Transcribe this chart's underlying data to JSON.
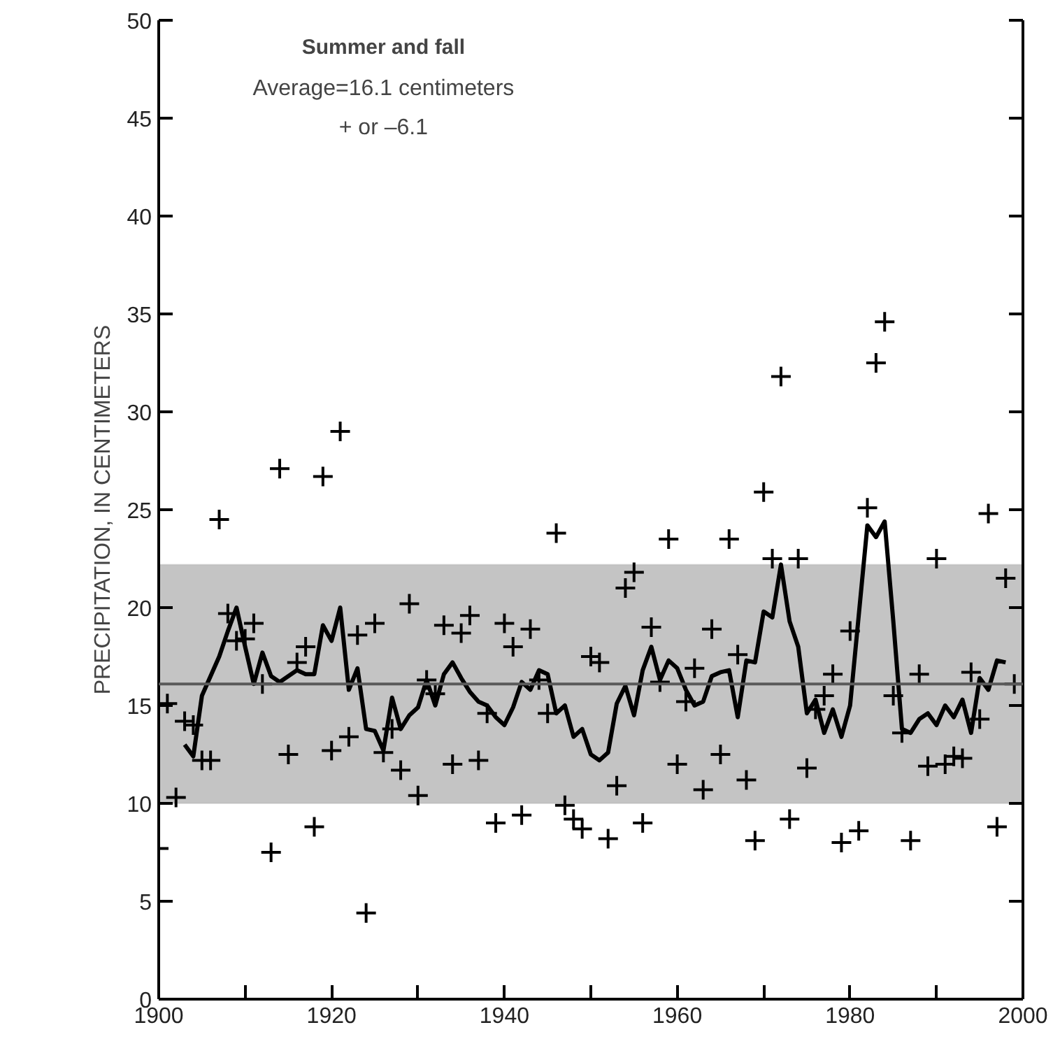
{
  "chart_data": {
    "type": "scatter",
    "title": "Summer and fall",
    "annotations": [
      "Average=16.1 centimeters",
      "+ or –6.1"
    ],
    "ylabel": "PRECIPITATION, IN CENTIMETERS",
    "xlim": [
      1900,
      2000
    ],
    "ylim": [
      0,
      50
    ],
    "xticks": [
      1900,
      {
        "value": 1910,
        "label": null
      },
      1920,
      {
        "value": 1930,
        "label": null
      },
      1940,
      {
        "value": 1950,
        "label": null
      },
      1960,
      {
        "value": 1970,
        "label": null
      },
      1980,
      {
        "value": 1990,
        "label": null
      },
      2000
    ],
    "yticks": [
      0,
      5,
      10,
      15,
      20,
      25,
      30,
      35,
      40,
      45,
      50
    ],
    "grid": false,
    "bands": [
      {
        "axis": "y",
        "from": 10.0,
        "to": 22.2,
        "color": "#c4c4c4"
      }
    ],
    "ref_lines": [
      {
        "axis": "y",
        "value": 16.1,
        "color": "#5a5a5a"
      }
    ],
    "series": [
      {
        "marker": "cross",
        "color": "#000000",
        "x": [
          1900,
          1901,
          1902,
          1903,
          1904,
          1905,
          1906,
          1907,
          1908,
          1909,
          1910,
          1911,
          1912,
          1913,
          1914,
          1915,
          1916,
          1917,
          1918,
          1919,
          1920,
          1921,
          1922,
          1923,
          1924,
          1925,
          1926,
          1927,
          1928,
          1929,
          1930,
          1931,
          1932,
          1933,
          1934,
          1935,
          1936,
          1937,
          1938,
          1939,
          1940,
          1941,
          1942,
          1943,
          1944,
          1945,
          1946,
          1947,
          1948,
          1949,
          1950,
          1951,
          1952,
          1953,
          1954,
          1955,
          1956,
          1957,
          1958,
          1959,
          1960,
          1961,
          1962,
          1963,
          1964,
          1965,
          1966,
          1967,
          1968,
          1969,
          1970,
          1971,
          1972,
          1973,
          1974,
          1975,
          1976,
          1977,
          1978,
          1979,
          1980,
          1981,
          1982,
          1983,
          1984,
          1985,
          1986,
          1987,
          1988,
          1989,
          1990,
          1991,
          1992,
          1993,
          1994,
          1995,
          1996,
          1997,
          1998,
          1999
        ],
        "values": [
          7.7,
          15.1,
          10.3,
          14.2,
          14.0,
          12.2,
          12.2,
          24.5,
          19.7,
          18.3,
          18.4,
          19.2,
          16.1,
          7.5,
          27.1,
          12.5,
          17.2,
          18.0,
          8.8,
          26.7,
          12.7,
          29.0,
          13.4,
          18.6,
          4.4,
          19.2,
          12.6,
          13.8,
          11.7,
          20.2,
          10.4,
          16.3,
          15.6,
          19.1,
          12.0,
          18.7,
          19.6,
          12.2,
          14.6,
          9.0,
          19.2,
          18.0,
          9.4,
          18.9,
          16.3,
          14.6,
          23.8,
          9.9,
          9.2,
          8.7,
          17.5,
          17.2,
          8.2,
          10.9,
          21.0,
          21.8,
          9.0,
          19.0,
          16.2,
          23.5,
          12.0,
          15.2,
          16.9,
          10.7,
          18.9,
          12.5,
          23.5,
          17.6,
          11.2,
          8.1,
          25.9,
          22.5,
          31.8,
          9.2,
          22.5,
          11.8,
          14.8,
          15.5,
          16.6,
          8.0,
          18.8,
          8.6,
          25.1,
          32.5,
          34.6,
          15.5,
          13.6,
          8.1,
          16.6,
          11.9,
          22.5,
          12.0,
          12.4,
          12.3,
          16.7,
          14.3,
          24.8,
          8.8,
          21.5,
          16.1
        ]
      },
      {
        "type": "line",
        "marker": "none",
        "line_style": "solid",
        "color": "#000000",
        "x": [
          1903,
          1904,
          1905,
          1906,
          1907,
          1908,
          1909,
          1910,
          1911,
          1912,
          1913,
          1914,
          1915,
          1916,
          1917,
          1918,
          1919,
          1920,
          1921,
          1922,
          1923,
          1924,
          1925,
          1926,
          1927,
          1928,
          1929,
          1930,
          1931,
          1932,
          1933,
          1934,
          1935,
          1936,
          1937,
          1938,
          1939,
          1940,
          1941,
          1942,
          1943,
          1944,
          1945,
          1946,
          1947,
          1948,
          1949,
          1950,
          1951,
          1952,
          1953,
          1954,
          1955,
          1956,
          1957,
          1958,
          1959,
          1960,
          1961,
          1962,
          1963,
          1964,
          1965,
          1966,
          1967,
          1968,
          1969,
          1970,
          1971,
          1972,
          1973,
          1974,
          1975,
          1976,
          1977,
          1978,
          1979,
          1980,
          1981,
          1982,
          1983,
          1984,
          1985,
          1986,
          1987,
          1988,
          1989,
          1990,
          1991,
          1992,
          1993,
          1994,
          1995,
          1996,
          1997,
          1998
        ],
        "values": [
          13.0,
          12.4,
          15.5,
          16.5,
          17.5,
          18.8,
          20.0,
          18.0,
          16.1,
          17.7,
          16.5,
          16.2,
          16.5,
          16.8,
          16.6,
          16.6,
          19.1,
          18.3,
          20.0,
          15.8,
          16.9,
          13.8,
          13.7,
          12.7,
          15.4,
          13.8,
          14.5,
          14.9,
          16.3,
          15.0,
          16.6,
          17.2,
          16.4,
          15.7,
          15.2,
          15.0,
          14.4,
          14.0,
          14.9,
          16.2,
          15.8,
          16.8,
          16.6,
          14.6,
          15.0,
          13.4,
          13.8,
          12.5,
          12.2,
          12.6,
          15.1,
          16.0,
          14.5,
          16.8,
          18.0,
          16.3,
          17.3,
          16.9,
          15.8,
          15.0,
          15.2,
          16.5,
          16.7,
          16.8,
          14.4,
          17.3,
          17.2,
          19.8,
          19.5,
          22.2,
          19.3,
          18.0,
          14.6,
          15.3,
          13.6,
          14.8,
          13.4,
          15.0,
          19.6,
          24.2,
          23.6,
          24.4,
          19.3,
          13.8,
          13.6,
          14.3,
          14.6,
          14.0,
          15.0,
          14.4,
          15.3,
          13.6,
          16.4,
          15.8,
          17.3,
          17.2
        ]
      }
    ]
  }
}
